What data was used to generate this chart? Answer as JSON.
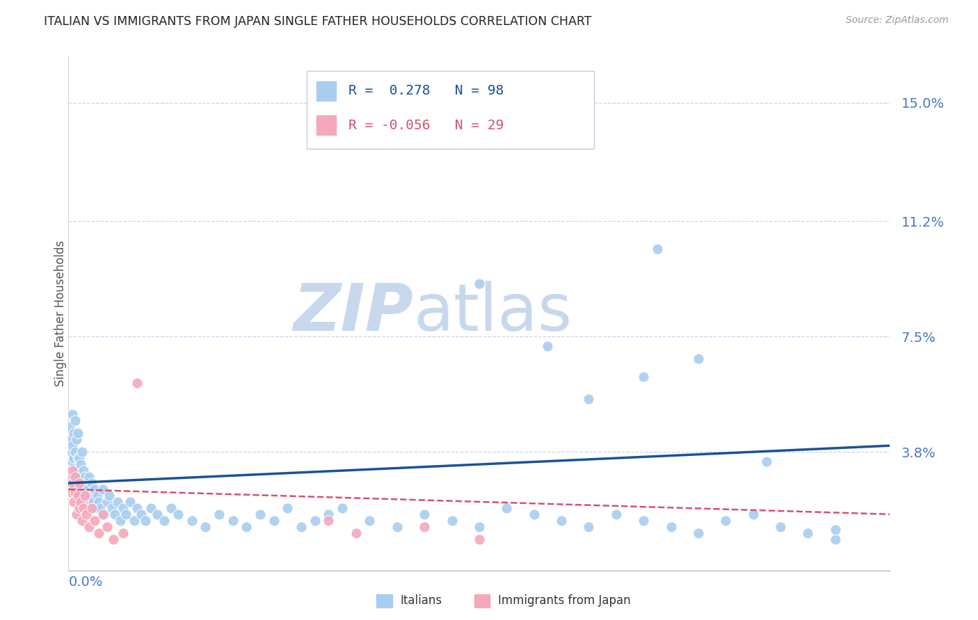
{
  "title": "ITALIAN VS IMMIGRANTS FROM JAPAN SINGLE FATHER HOUSEHOLDS CORRELATION CHART",
  "source": "Source: ZipAtlas.com",
  "ylabel": "Single Father Households",
  "legend_italian_R": "0.278",
  "legend_italian_N": "98",
  "legend_japan_R": "-0.056",
  "legend_japan_N": "29",
  "italian_color": "#a8cdf0",
  "japan_color": "#f5a8bb",
  "trendline_italian_color": "#1a5296",
  "trendline_japan_color": "#d45070",
  "watermark_zip_color": "#c8d8ec",
  "watermark_atlas_color": "#c8d8ec",
  "title_color": "#222222",
  "axis_label_color": "#4878c8",
  "grid_color": "#c8d4e8",
  "background_color": "#ffffff",
  "xlim": [
    0.0,
    0.6
  ],
  "ylim": [
    0.0,
    0.165
  ],
  "yticks": [
    0.038,
    0.075,
    0.112,
    0.15
  ],
  "ytick_labels": [
    "3.8%",
    "7.5%",
    "11.2%",
    "15.0%"
  ],
  "figsize": [
    14.06,
    8.92
  ],
  "dpi": 100,
  "italian_x": [
    0.001,
    0.002,
    0.002,
    0.003,
    0.003,
    0.003,
    0.004,
    0.004,
    0.004,
    0.005,
    0.005,
    0.005,
    0.006,
    0.006,
    0.007,
    0.007,
    0.007,
    0.008,
    0.008,
    0.009,
    0.009,
    0.01,
    0.01,
    0.011,
    0.011,
    0.012,
    0.012,
    0.013,
    0.013,
    0.014,
    0.015,
    0.015,
    0.016,
    0.017,
    0.018,
    0.019,
    0.02,
    0.021,
    0.022,
    0.023,
    0.025,
    0.026,
    0.028,
    0.03,
    0.032,
    0.034,
    0.036,
    0.038,
    0.04,
    0.042,
    0.045,
    0.048,
    0.05,
    0.053,
    0.056,
    0.06,
    0.065,
    0.07,
    0.075,
    0.08,
    0.09,
    0.1,
    0.11,
    0.12,
    0.13,
    0.14,
    0.15,
    0.16,
    0.17,
    0.18,
    0.19,
    0.2,
    0.22,
    0.24,
    0.26,
    0.28,
    0.3,
    0.32,
    0.34,
    0.36,
    0.38,
    0.4,
    0.42,
    0.44,
    0.46,
    0.48,
    0.5,
    0.52,
    0.54,
    0.56,
    0.42,
    0.38,
    0.46,
    0.51,
    0.35,
    0.3,
    0.43,
    0.56
  ],
  "italian_y": [
    0.046,
    0.042,
    0.038,
    0.05,
    0.035,
    0.04,
    0.044,
    0.03,
    0.036,
    0.048,
    0.032,
    0.038,
    0.042,
    0.028,
    0.036,
    0.032,
    0.044,
    0.03,
    0.036,
    0.034,
    0.028,
    0.038,
    0.024,
    0.032,
    0.026,
    0.03,
    0.022,
    0.028,
    0.024,
    0.026,
    0.022,
    0.03,
    0.024,
    0.028,
    0.022,
    0.026,
    0.02,
    0.024,
    0.022,
    0.02,
    0.026,
    0.018,
    0.022,
    0.024,
    0.02,
    0.018,
    0.022,
    0.016,
    0.02,
    0.018,
    0.022,
    0.016,
    0.02,
    0.018,
    0.016,
    0.02,
    0.018,
    0.016,
    0.02,
    0.018,
    0.016,
    0.014,
    0.018,
    0.016,
    0.014,
    0.018,
    0.016,
    0.02,
    0.014,
    0.016,
    0.018,
    0.02,
    0.016,
    0.014,
    0.018,
    0.016,
    0.014,
    0.02,
    0.018,
    0.016,
    0.014,
    0.018,
    0.016,
    0.014,
    0.012,
    0.016,
    0.018,
    0.014,
    0.012,
    0.01,
    0.062,
    0.055,
    0.068,
    0.035,
    0.072,
    0.092,
    0.103,
    0.013
  ],
  "japan_x": [
    0.001,
    0.002,
    0.003,
    0.003,
    0.004,
    0.005,
    0.005,
    0.006,
    0.007,
    0.008,
    0.008,
    0.009,
    0.01,
    0.011,
    0.012,
    0.013,
    0.015,
    0.017,
    0.019,
    0.022,
    0.025,
    0.028,
    0.033,
    0.04,
    0.05,
    0.19,
    0.21,
    0.26,
    0.3
  ],
  "japan_y": [
    0.03,
    0.025,
    0.032,
    0.028,
    0.022,
    0.03,
    0.025,
    0.018,
    0.024,
    0.02,
    0.028,
    0.022,
    0.016,
    0.02,
    0.024,
    0.018,
    0.014,
    0.02,
    0.016,
    0.012,
    0.018,
    0.014,
    0.01,
    0.012,
    0.06,
    0.016,
    0.012,
    0.014,
    0.01
  ],
  "trendline_it_x0": 0.0,
  "trendline_it_y0": 0.028,
  "trendline_it_x1": 0.6,
  "trendline_it_y1": 0.04,
  "trendline_jp_x0": 0.0,
  "trendline_jp_y0": 0.026,
  "trendline_jp_x1": 0.6,
  "trendline_jp_y1": 0.018
}
